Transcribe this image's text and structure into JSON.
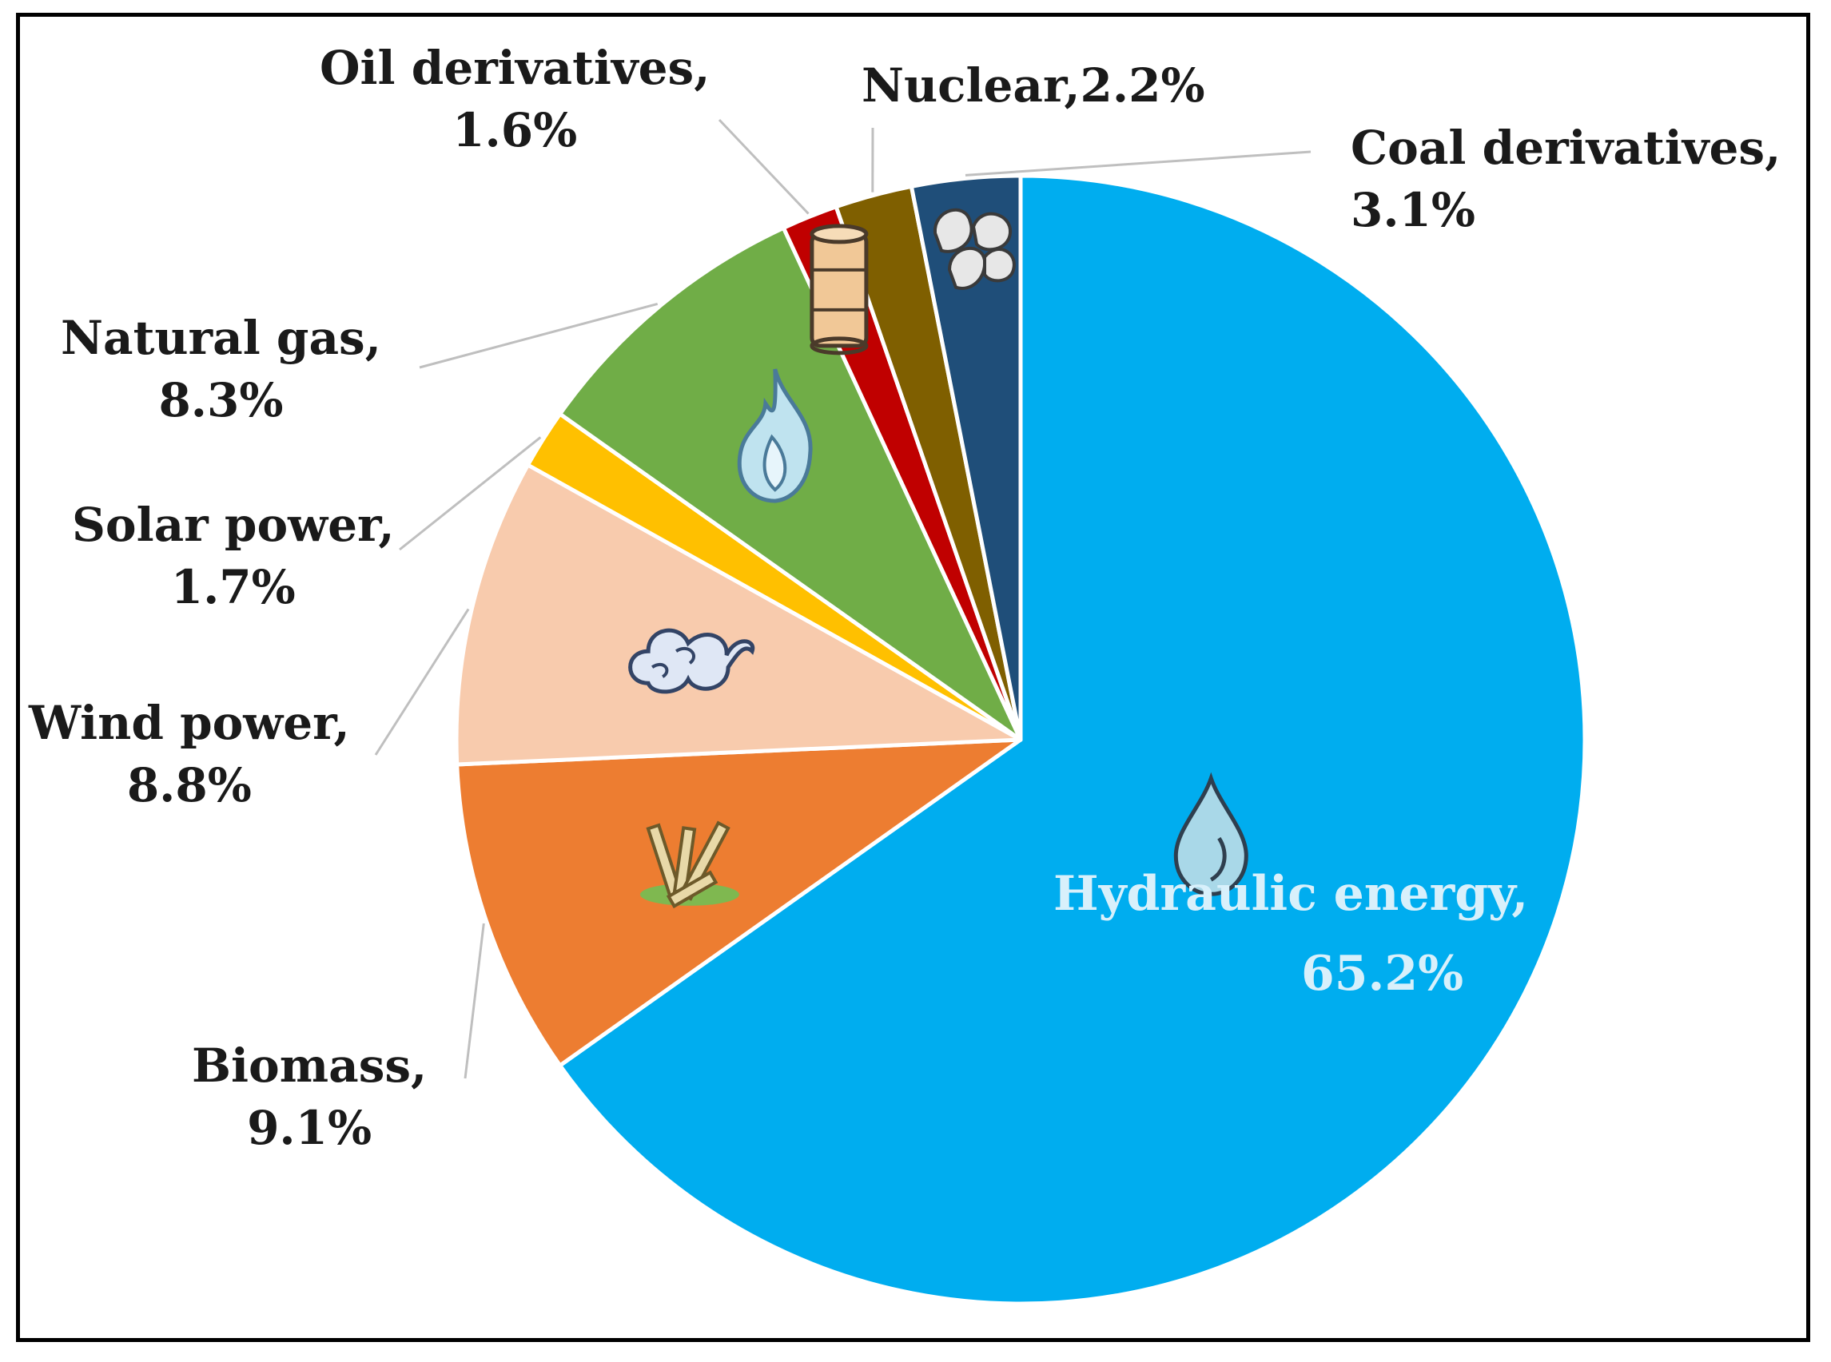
{
  "chart_data": {
    "type": "pie",
    "title": "",
    "slices": [
      {
        "label": "Hydraulic energy,",
        "value": 65.2,
        "value_label": "65.2%",
        "color": "#00adef",
        "icon": "water-drop-icon"
      },
      {
        "label": "Biomass,",
        "value": 9.1,
        "value_label": "9.1%",
        "color": "#ed7d31",
        "icon": "sugarcane-icon"
      },
      {
        "label": "Wind power,",
        "value": 8.8,
        "value_label": "8.8%",
        "color": "#f8cbad",
        "icon": "wind-icon"
      },
      {
        "label": "Solar power,",
        "value": 1.7,
        "value_label": "1.7%",
        "color": "#ffc000",
        "icon": ""
      },
      {
        "label": "Natural gas,",
        "value": 8.3,
        "value_label": "8.3%",
        "color": "#70ad47",
        "icon": "flame-icon"
      },
      {
        "label": "Oil derivatives,",
        "value": 1.6,
        "value_label": "1.6%",
        "color": "#c00000",
        "icon": "oil-barrel-icon"
      },
      {
        "label": "Nuclear,",
        "value": 2.2,
        "value_label": "2.2%",
        "color": "#7f5f00",
        "icon": ""
      },
      {
        "label": "Coal derivatives,",
        "value": 3.1,
        "value_label": "3.1%",
        "color": "#1f4e79",
        "icon": "coal-icon"
      }
    ],
    "start": "12 o'clock",
    "direction": "clockwise"
  }
}
